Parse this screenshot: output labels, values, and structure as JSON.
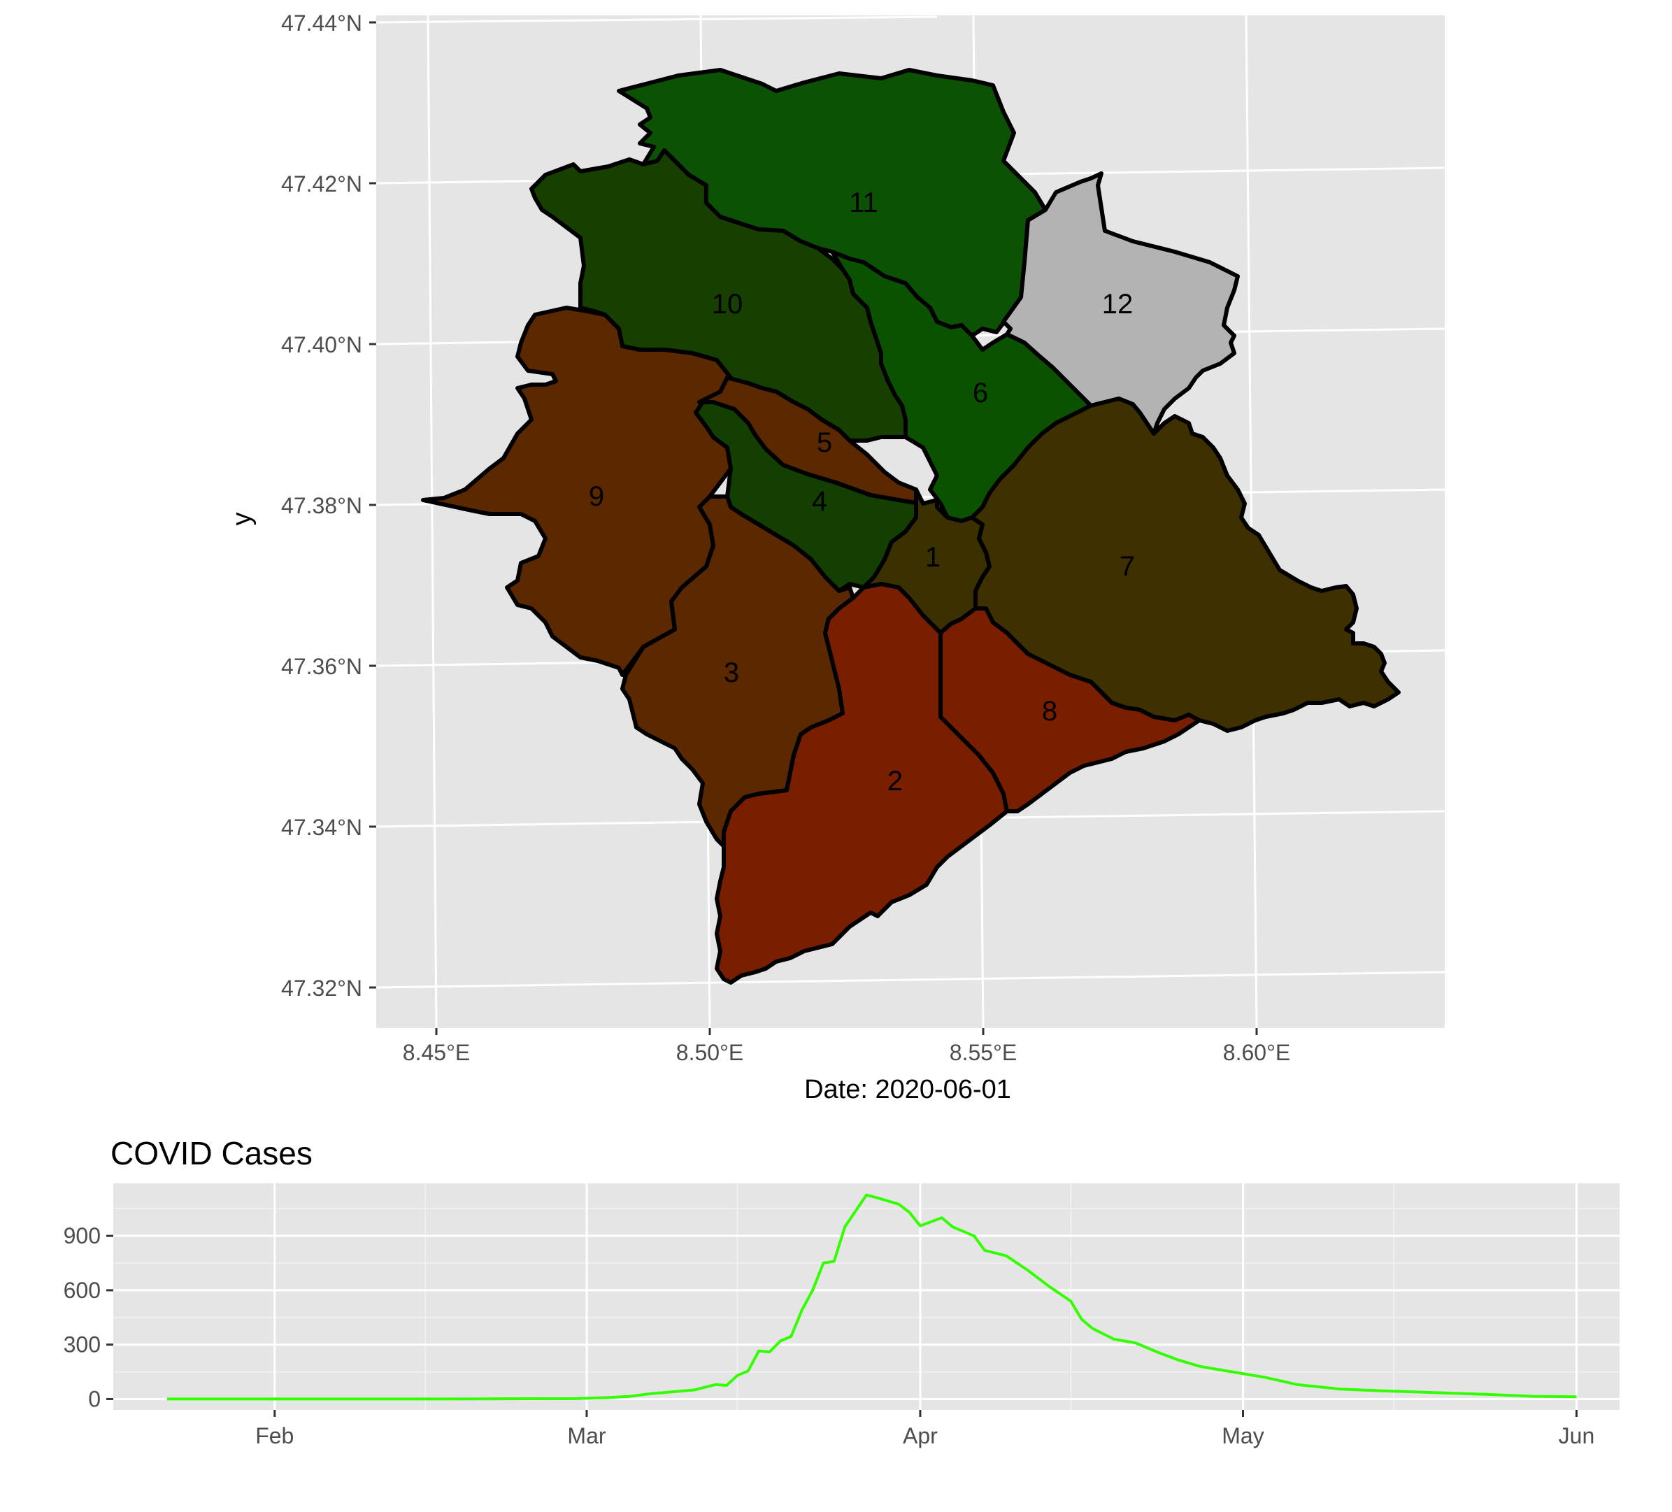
{
  "chart_data": [
    {
      "type": "map",
      "ylabel": "y",
      "xlabel": "Date:  2020-06-01",
      "x_ticks": [
        "8.45°E",
        "8.50°E",
        "8.55°E",
        "8.60°E"
      ],
      "y_ticks": [
        "47.44°N",
        "47.42°N",
        "47.40°N",
        "47.38°N",
        "47.36°N",
        "47.34°N",
        "47.32°N"
      ],
      "districts": [
        {
          "label": "1",
          "color": "#3a3000"
        },
        {
          "label": "2",
          "color": "#7a1e00"
        },
        {
          "label": "3",
          "color": "#5b2800"
        },
        {
          "label": "4",
          "color": "#133f00"
        },
        {
          "label": "5",
          "color": "#5b2800"
        },
        {
          "label": "6",
          "color": "#0b5200"
        },
        {
          "label": "7",
          "color": "#3f3000"
        },
        {
          "label": "8",
          "color": "#7a1e00"
        },
        {
          "label": "9",
          "color": "#5b2800"
        },
        {
          "label": "10",
          "color": "#173f00"
        },
        {
          "label": "11",
          "color": "#0b5204"
        },
        {
          "label": "12",
          "color": "#b3b3b3"
        }
      ]
    },
    {
      "type": "line",
      "title": "COVID Cases",
      "x_ticks": [
        "Feb",
        "Mar",
        "Apr",
        "May",
        "Jun"
      ],
      "y_ticks": [
        "0",
        "300",
        "600",
        "900"
      ],
      "ylim": [
        -60,
        1190
      ],
      "line_color": "#33ff00",
      "series": [
        {
          "points": [
            [
              "2020-01-22",
              0
            ],
            [
              "2020-02-01",
              0
            ],
            [
              "2020-02-15",
              0
            ],
            [
              "2020-02-29",
              2
            ],
            [
              "2020-03-03",
              8
            ],
            [
              "2020-03-05",
              15
            ],
            [
              "2020-03-07",
              30
            ],
            [
              "2020-03-09",
              40
            ],
            [
              "2020-03-11",
              50
            ],
            [
              "2020-03-13",
              80
            ],
            [
              "2020-03-14",
              75
            ],
            [
              "2020-03-15",
              130
            ],
            [
              "2020-03-16",
              155
            ],
            [
              "2020-03-17",
              265
            ],
            [
              "2020-03-18",
              260
            ],
            [
              "2020-03-19",
              320
            ],
            [
              "2020-03-20",
              345
            ],
            [
              "2020-03-21",
              490
            ],
            [
              "2020-03-22",
              600
            ],
            [
              "2020-03-23",
              750
            ],
            [
              "2020-03-24",
              760
            ],
            [
              "2020-03-25",
              950
            ],
            [
              "2020-03-27",
              1125
            ],
            [
              "2020-03-28",
              1110
            ],
            [
              "2020-03-30",
              1075
            ],
            [
              "2020-03-31",
              1030
            ],
            [
              "2020-04-01",
              955
            ],
            [
              "2020-04-03",
              1000
            ],
            [
              "2020-04-04",
              950
            ],
            [
              "2020-04-06",
              900
            ],
            [
              "2020-04-07",
              820
            ],
            [
              "2020-04-09",
              790
            ],
            [
              "2020-04-11",
              710
            ],
            [
              "2020-04-13",
              620
            ],
            [
              "2020-04-15",
              540
            ],
            [
              "2020-04-16",
              440
            ],
            [
              "2020-04-17",
              390
            ],
            [
              "2020-04-19",
              330
            ],
            [
              "2020-04-21",
              310
            ],
            [
              "2020-04-23",
              260
            ],
            [
              "2020-04-25",
              215
            ],
            [
              "2020-04-27",
              180
            ],
            [
              "2020-04-30",
              150
            ],
            [
              "2020-05-03",
              120
            ],
            [
              "2020-05-06",
              80
            ],
            [
              "2020-05-10",
              55
            ],
            [
              "2020-05-14",
              45
            ],
            [
              "2020-05-19",
              35
            ],
            [
              "2020-05-24",
              25
            ],
            [
              "2020-05-28",
              15
            ],
            [
              "2020-06-01",
              12
            ]
          ]
        }
      ]
    }
  ]
}
